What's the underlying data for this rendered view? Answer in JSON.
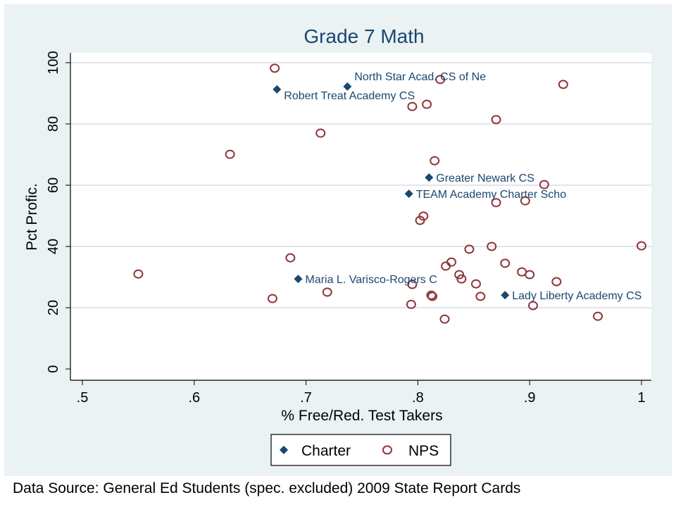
{
  "chart_data": {
    "type": "scatter",
    "title": "Grade 7 Math",
    "xlabel": "% Free/Red. Test Takers",
    "ylabel": "Pct Profic.",
    "xlim": [
      0.5,
      1.0
    ],
    "ylim": [
      0,
      100
    ],
    "xticks": [
      0.5,
      0.6,
      0.7,
      0.8,
      0.9,
      1.0
    ],
    "xtick_labels": [
      ".5",
      ".6",
      ".7",
      ".8",
      ".9",
      "1"
    ],
    "yticks": [
      0,
      20,
      40,
      60,
      80,
      100
    ],
    "ytick_labels": [
      "0",
      "20",
      "40",
      "60",
      "80",
      "100"
    ],
    "grid": "horizontal",
    "legend_position": "bottom",
    "colors": {
      "background": "#EAF2F3",
      "charter": "#1A476F",
      "nps": "#90353B",
      "title": "#1A476F",
      "grid": "#E0E6EA"
    },
    "series": [
      {
        "name": "Charter",
        "marker": "diamond",
        "points": [
          {
            "x": 0.674,
            "y": 91.3,
            "label": "Robert Treat Academy CS"
          },
          {
            "x": 0.737,
            "y": 92.2,
            "label": "North Star Acad. CS of Ne"
          },
          {
            "x": 0.81,
            "y": 62.5,
            "label": "Greater Newark CS"
          },
          {
            "x": 0.792,
            "y": 57.2,
            "label": "TEAM Academy Charter Scho"
          },
          {
            "x": 0.693,
            "y": 29.4,
            "label": "Maria L. Varisco-Rogers C"
          },
          {
            "x": 0.878,
            "y": 24.1,
            "label": "Lady Liberty Academy CS"
          }
        ]
      },
      {
        "name": "NPS",
        "marker": "hollow-circle",
        "points": [
          {
            "x": 0.672,
            "y": 98.2
          },
          {
            "x": 0.82,
            "y": 94.5
          },
          {
            "x": 0.93,
            "y": 92.9
          },
          {
            "x": 0.795,
            "y": 85.7
          },
          {
            "x": 0.808,
            "y": 86.4
          },
          {
            "x": 0.87,
            "y": 81.4
          },
          {
            "x": 0.713,
            "y": 77.0
          },
          {
            "x": 0.632,
            "y": 70.1
          },
          {
            "x": 0.815,
            "y": 68.0
          },
          {
            "x": 0.913,
            "y": 60.2
          },
          {
            "x": 0.896,
            "y": 54.9
          },
          {
            "x": 0.87,
            "y": 54.3
          },
          {
            "x": 0.805,
            "y": 49.9
          },
          {
            "x": 0.802,
            "y": 48.5
          },
          {
            "x": 0.846,
            "y": 39.1
          },
          {
            "x": 0.866,
            "y": 40.0
          },
          {
            "x": 1.0,
            "y": 40.2
          },
          {
            "x": 0.686,
            "y": 36.3
          },
          {
            "x": 0.83,
            "y": 34.9
          },
          {
            "x": 0.825,
            "y": 33.6
          },
          {
            "x": 0.878,
            "y": 34.5
          },
          {
            "x": 0.893,
            "y": 31.7
          },
          {
            "x": 0.9,
            "y": 30.8
          },
          {
            "x": 0.837,
            "y": 30.8
          },
          {
            "x": 0.55,
            "y": 31.0
          },
          {
            "x": 0.839,
            "y": 29.4
          },
          {
            "x": 0.924,
            "y": 28.5
          },
          {
            "x": 0.852,
            "y": 27.8
          },
          {
            "x": 0.795,
            "y": 27.6
          },
          {
            "x": 0.719,
            "y": 25.1
          },
          {
            "x": 0.812,
            "y": 24.1
          },
          {
            "x": 0.813,
            "y": 23.7
          },
          {
            "x": 0.856,
            "y": 23.7
          },
          {
            "x": 0.67,
            "y": 23.0
          },
          {
            "x": 0.794,
            "y": 21.1
          },
          {
            "x": 0.903,
            "y": 20.7
          },
          {
            "x": 0.824,
            "y": 16.3
          },
          {
            "x": 0.961,
            "y": 17.2
          }
        ]
      }
    ],
    "legend": [
      "Charter",
      "NPS"
    ]
  },
  "footnote": "Data Source: General Ed Students (spec. excluded) 2009 State Report Cards"
}
